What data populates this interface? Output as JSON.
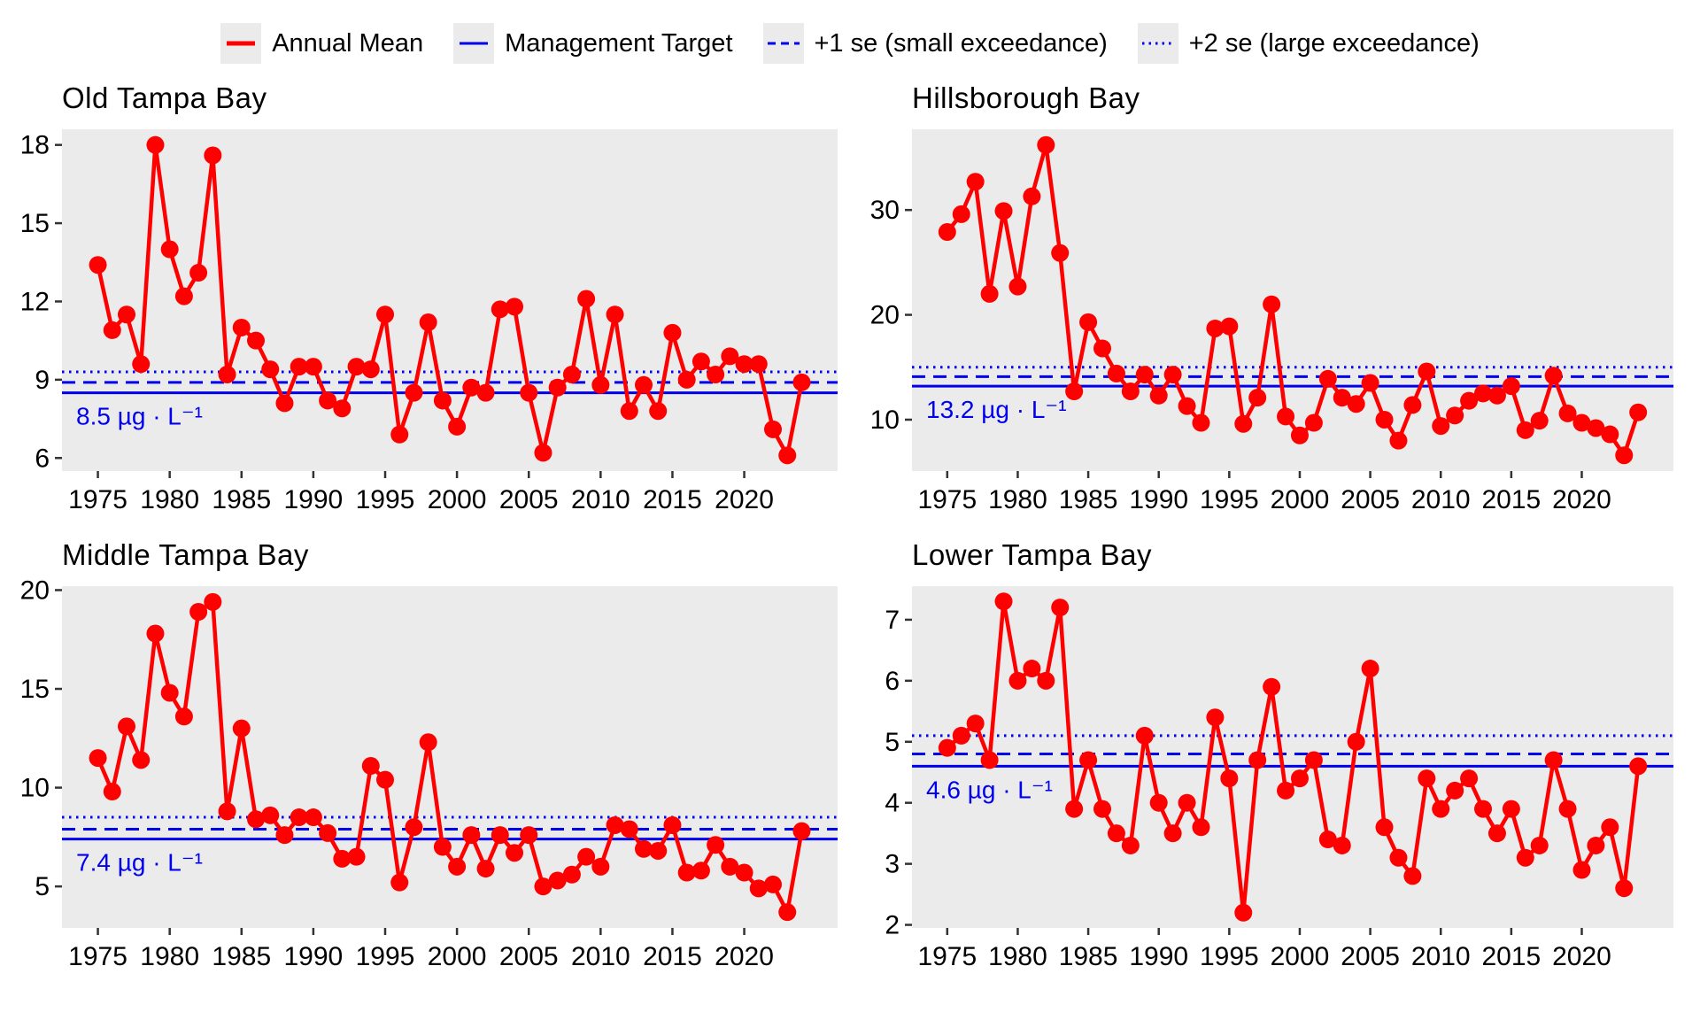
{
  "legend": {
    "items": [
      {
        "label": "Annual Mean",
        "style": "annual-mean",
        "color": "#ff0000"
      },
      {
        "label": "Management Target",
        "style": "target",
        "color": "#0000ee"
      },
      {
        "label": "+1 se (small exceedance)",
        "style": "plus1se",
        "color": "#0000ee"
      },
      {
        "label": "+2 se (large exceedance)",
        "style": "plus2se",
        "color": "#0000ee"
      }
    ]
  },
  "colors": {
    "series": "#ff0000",
    "threshold": "#0000ee",
    "panel_bg": "#ebebeb",
    "text": "#000000",
    "tick": "#333333"
  },
  "chart_data": [
    {
      "type": "line",
      "title": "Old Tampa Bay",
      "target_label": "8.5 µg · L⁻¹",
      "target": 8.5,
      "plus1se": 8.9,
      "plus2se": 9.3,
      "year_start": 1975,
      "year_end": 2024,
      "values": [
        13.4,
        10.9,
        11.5,
        9.6,
        18.0,
        14.0,
        12.2,
        13.1,
        17.6,
        9.2,
        11.0,
        10.5,
        9.4,
        8.1,
        9.5,
        9.5,
        8.2,
        7.9,
        9.5,
        9.4,
        11.5,
        6.9,
        8.5,
        11.2,
        8.2,
        7.2,
        8.7,
        8.5,
        11.7,
        11.8,
        8.5,
        6.2,
        8.7,
        9.2,
        12.1,
        8.8,
        11.5,
        7.8,
        8.8,
        7.8,
        10.8,
        9.0,
        9.7,
        9.2,
        9.9,
        9.6,
        9.6,
        7.1,
        6.1,
        8.9
      ],
      "xticks": [
        1975,
        1980,
        1985,
        1990,
        1995,
        2000,
        2005,
        2010,
        2015,
        2020
      ],
      "yticks": [
        6,
        9,
        12,
        15,
        18
      ],
      "xlim": [
        1972.5,
        2026.5
      ],
      "ylim": [
        5.5,
        18.6
      ],
      "grid": false,
      "ylabel": "",
      "xlabel": ""
    },
    {
      "type": "line",
      "title": "Hillsborough Bay",
      "target_label": "13.2 µg · L⁻¹",
      "target": 13.2,
      "plus1se": 14.1,
      "plus2se": 15.0,
      "year_start": 1975,
      "year_end": 2024,
      "values": [
        27.9,
        29.6,
        32.7,
        22.0,
        29.9,
        22.7,
        31.3,
        36.2,
        25.9,
        12.7,
        19.3,
        16.8,
        14.4,
        12.7,
        14.3,
        12.3,
        14.3,
        11.3,
        9.7,
        18.7,
        18.9,
        9.6,
        12.1,
        21.0,
        10.3,
        8.5,
        9.7,
        13.9,
        12.1,
        11.5,
        13.5,
        10.0,
        8.0,
        11.4,
        14.6,
        9.4,
        10.4,
        11.8,
        12.5,
        12.3,
        13.2,
        9.0,
        9.9,
        14.2,
        10.6,
        9.7,
        9.2,
        8.6,
        6.6,
        10.7
      ],
      "xticks": [
        1975,
        1980,
        1985,
        1990,
        1995,
        2000,
        2005,
        2010,
        2015,
        2020
      ],
      "yticks": [
        10,
        20,
        30
      ],
      "xlim": [
        1972.5,
        2026.5
      ],
      "ylim": [
        5.1,
        37.7
      ],
      "grid": false,
      "ylabel": "",
      "xlabel": ""
    },
    {
      "type": "line",
      "title": "Middle Tampa Bay",
      "target_label": "7.4 µg · L⁻¹",
      "target": 7.4,
      "plus1se": 7.9,
      "plus2se": 8.5,
      "year_start": 1975,
      "year_end": 2024,
      "values": [
        11.5,
        9.8,
        13.1,
        11.4,
        17.8,
        14.8,
        13.6,
        18.9,
        19.4,
        8.8,
        13.0,
        8.4,
        8.6,
        7.6,
        8.5,
        8.5,
        7.7,
        6.4,
        6.5,
        11.1,
        10.4,
        5.2,
        8.0,
        12.3,
        7.0,
        6.0,
        7.6,
        5.9,
        7.6,
        6.7,
        7.6,
        5.0,
        5.3,
        5.6,
        6.5,
        6.0,
        8.1,
        7.9,
        6.9,
        6.8,
        8.1,
        5.7,
        5.8,
        7.1,
        6.0,
        5.7,
        4.9,
        5.1,
        3.7,
        7.8
      ],
      "xticks": [
        1975,
        1980,
        1985,
        1990,
        1995,
        2000,
        2005,
        2010,
        2015,
        2020
      ],
      "yticks": [
        5,
        10,
        15,
        20
      ],
      "xlim": [
        1972.5,
        2026.5
      ],
      "ylim": [
        2.9,
        20.2
      ],
      "grid": false,
      "ylabel": "",
      "xlabel": ""
    },
    {
      "type": "line",
      "title": "Lower Tampa Bay",
      "target_label": "4.6 µg · L⁻¹",
      "target": 4.6,
      "plus1se": 4.8,
      "plus2se": 5.1,
      "year_start": 1975,
      "year_end": 2024,
      "values": [
        4.9,
        5.1,
        5.3,
        4.7,
        7.3,
        6.0,
        6.2,
        6.0,
        7.2,
        3.9,
        4.7,
        3.9,
        3.5,
        3.3,
        5.1,
        4.0,
        3.5,
        4.0,
        3.6,
        5.4,
        4.4,
        2.2,
        4.7,
        5.9,
        4.2,
        4.4,
        4.7,
        3.4,
        3.3,
        5.0,
        6.2,
        3.6,
        3.1,
        2.8,
        4.4,
        3.9,
        4.2,
        4.4,
        3.9,
        3.5,
        3.9,
        3.1,
        3.3,
        4.7,
        3.9,
        2.9,
        3.3,
        3.6,
        2.6,
        4.6
      ],
      "xticks": [
        1975,
        1980,
        1985,
        1990,
        1995,
        2000,
        2005,
        2010,
        2015,
        2020
      ],
      "yticks": [
        2,
        3,
        4,
        5,
        6,
        7
      ],
      "xlim": [
        1972.5,
        2026.5
      ],
      "ylim": [
        1.95,
        7.55
      ],
      "grid": false,
      "ylabel": "",
      "xlabel": ""
    }
  ]
}
